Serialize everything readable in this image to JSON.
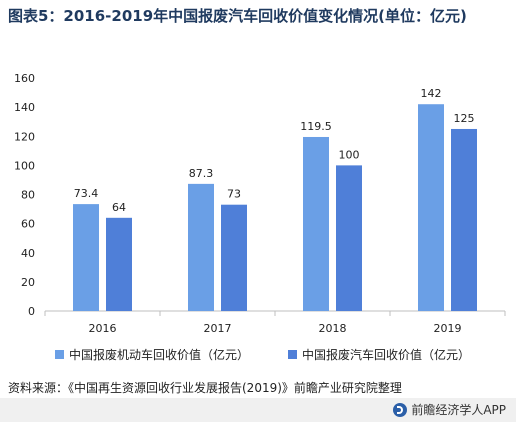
{
  "title": "图表5：2016-2019年中国报废汽车回收价值变化情况(单位：亿元)",
  "source": "资料来源：《中国再生资源回收行业发展报告(2019)》前瞻产业研究院整理",
  "brand": "前瞻经济学人APP",
  "colors": {
    "series1": "#6a9fe6",
    "series2": "#4f7fd8",
    "axis": "#bfbfbf",
    "footer_bg": "#f0f0f0"
  },
  "chart_data": {
    "type": "bar",
    "categories": [
      "2016",
      "2017",
      "2018",
      "2019"
    ],
    "series": [
      {
        "name": "中国报废机动车回收价值（亿元）",
        "values": [
          73.4,
          87.3,
          119.5,
          142
        ],
        "labels": [
          "73.4",
          "87.3",
          "119.5",
          "142"
        ]
      },
      {
        "name": "中国报废汽车回收价值（亿元）",
        "values": [
          64,
          73,
          100,
          125
        ],
        "labels": [
          "64",
          "73",
          "100",
          "125"
        ]
      }
    ],
    "yticks": [
      "0",
      "20",
      "40",
      "60",
      "80",
      "100",
      "120",
      "140",
      "160"
    ],
    "ylim": [
      0,
      160
    ],
    "grid": false,
    "legend_position": "bottom"
  }
}
